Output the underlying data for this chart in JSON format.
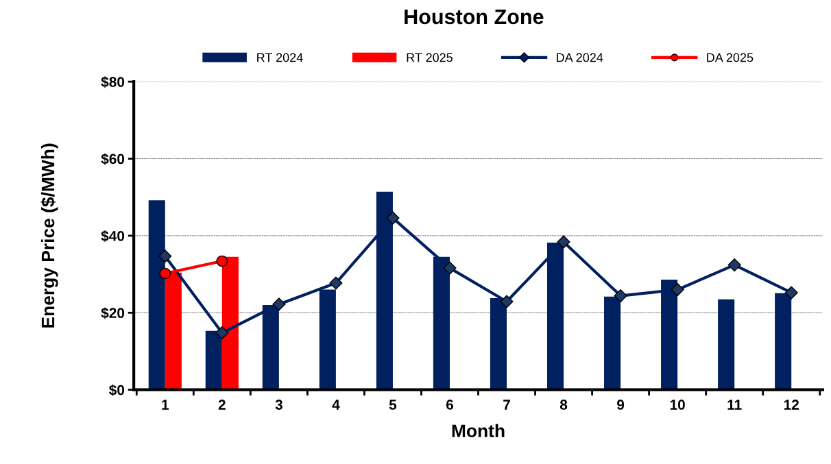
{
  "chart_data": {
    "type": "bar",
    "title": "Houston Zone",
    "xlabel": "Month",
    "ylabel": "Energy Price ($/MWh)",
    "categories": [
      "1",
      "2",
      "3",
      "4",
      "5",
      "6",
      "7",
      "8",
      "9",
      "10",
      "11",
      "12"
    ],
    "series": [
      {
        "name": "RT 2024",
        "color": "#002060",
        "values": [
          49.2,
          15.3,
          22.0,
          26.0,
          51.4,
          34.5,
          23.8,
          38.2,
          24.2,
          28.6,
          23.5,
          25.1
        ]
      },
      {
        "name": "RT 2025",
        "color": "#ff0000",
        "values": [
          30.4,
          34.5,
          null,
          null,
          null,
          null,
          null,
          null,
          null,
          null,
          null,
          null
        ]
      },
      {
        "name": "DA 2024",
        "type": "line",
        "color": "#002060",
        "marker": "diamond",
        "values": [
          34.7,
          14.8,
          22.2,
          27.7,
          44.6,
          31.6,
          22.9,
          38.4,
          24.4,
          26.0,
          32.4,
          25.2
        ]
      },
      {
        "name": "DA 2025",
        "type": "line",
        "color": "#ff0000",
        "marker": "circle",
        "values": [
          30.2,
          33.4,
          null,
          null,
          null,
          null,
          null,
          null,
          null,
          null,
          null,
          null
        ]
      }
    ],
    "ylim": [
      0,
      80
    ],
    "yticks": [
      {
        "value": 0,
        "label": "$0"
      },
      {
        "value": 20,
        "label": "$20"
      },
      {
        "value": 40,
        "label": "$40"
      },
      {
        "value": 60,
        "label": "$60"
      },
      {
        "value": 80,
        "label": "$80"
      }
    ],
    "grid": "y",
    "legend": "top"
  }
}
